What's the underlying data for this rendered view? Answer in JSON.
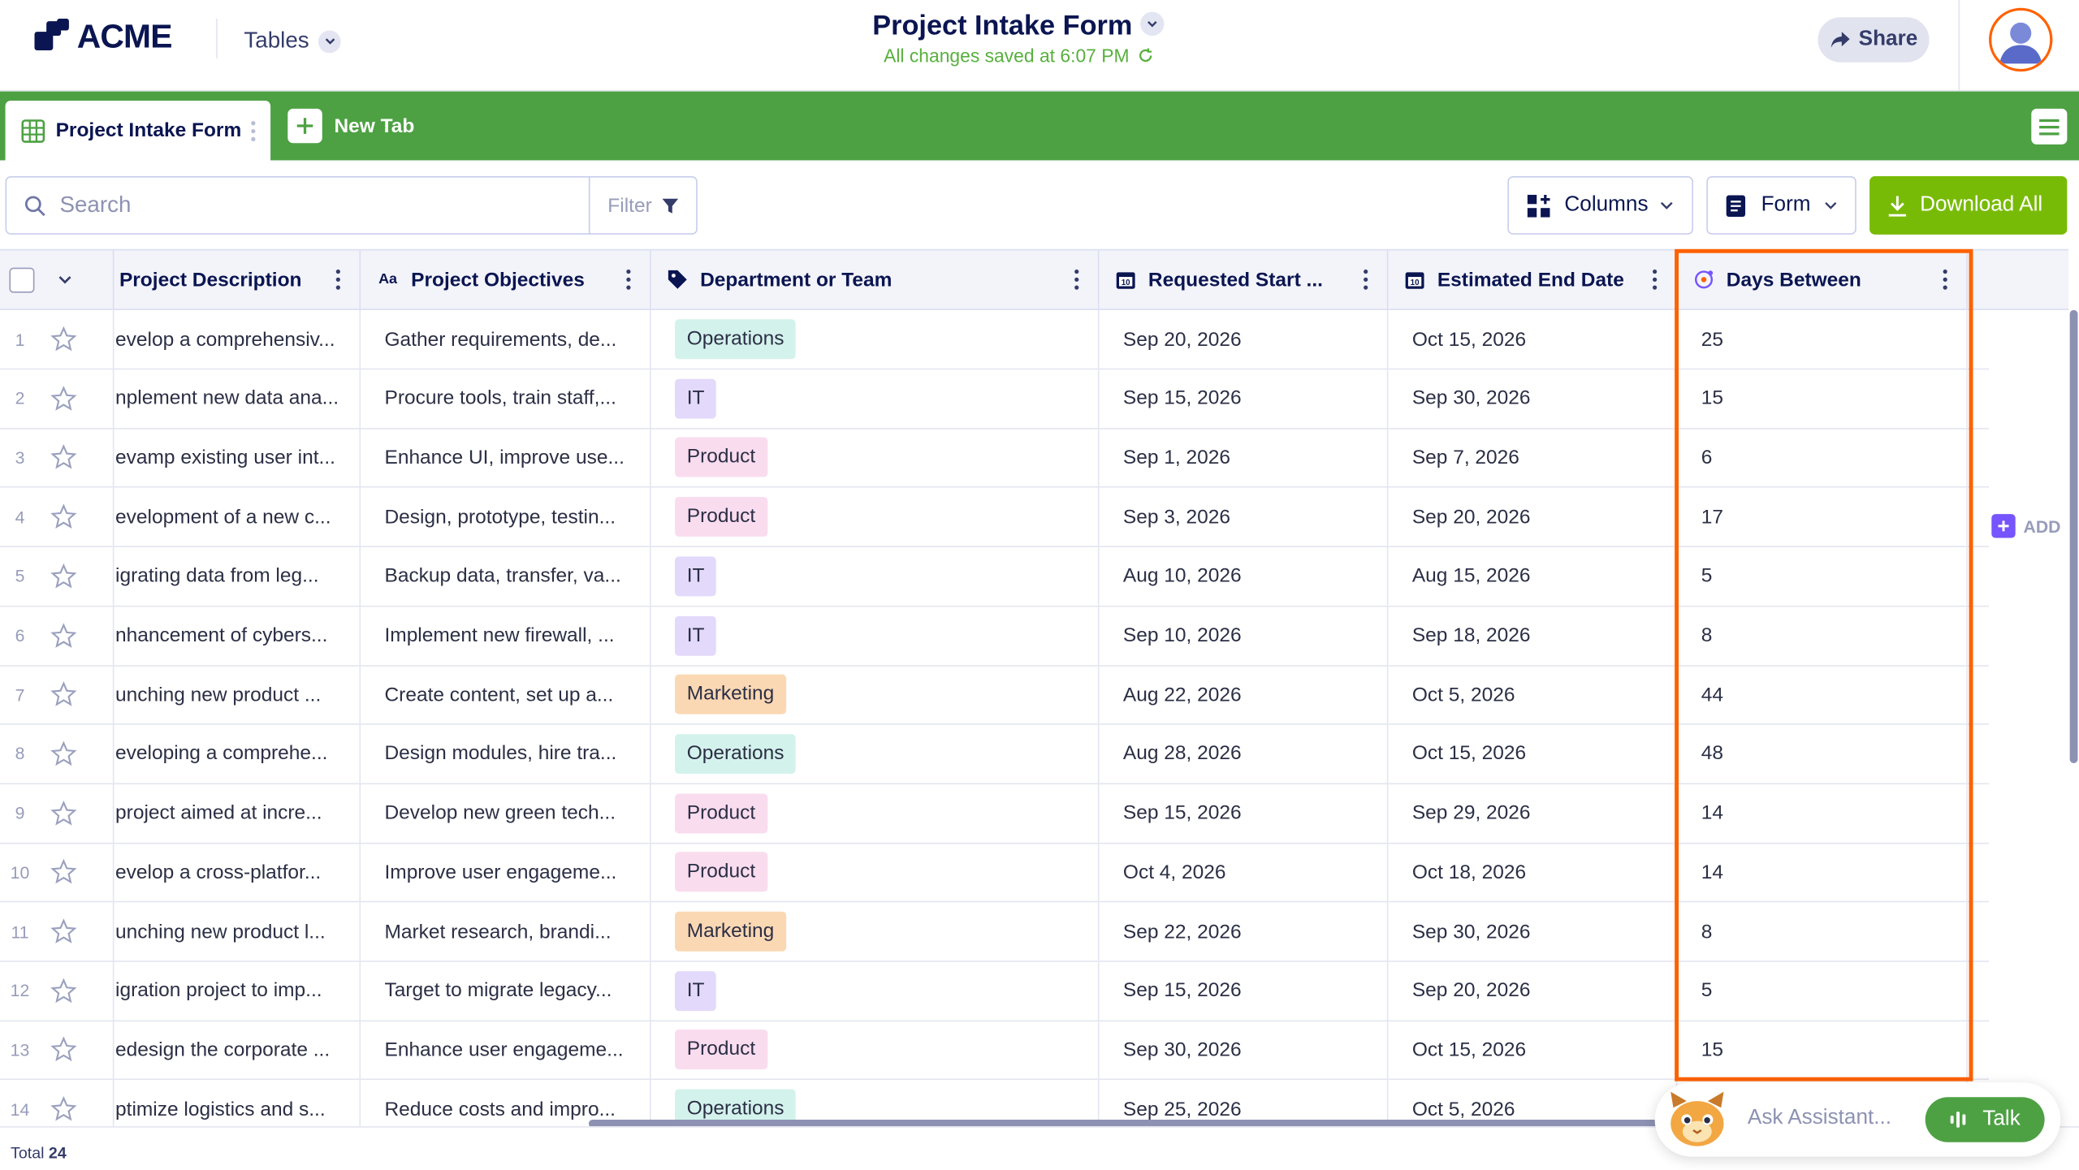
{
  "header": {
    "logo_text": "ACME",
    "tables_label": "Tables",
    "title": "Project Intake Form",
    "saved_status": "All changes saved at 6:07 PM",
    "share_label": "Share"
  },
  "tabs": {
    "active_label": "Project Intake Form",
    "new_tab_label": "New Tab"
  },
  "toolbar": {
    "search_placeholder": "Search",
    "filter_label": "Filter",
    "columns_label": "Columns",
    "form_label": "Form",
    "download_label": "Download All"
  },
  "columns": [
    {
      "label": "Project Description"
    },
    {
      "label": "Project Objectives"
    },
    {
      "label": "Department or Team"
    },
    {
      "label": "Requested Start ..."
    },
    {
      "label": "Estimated End Date"
    },
    {
      "label": "Days Between"
    }
  ],
  "add_column_label": "ADD",
  "rows": [
    {
      "n": "1",
      "desc": "evelop a comprehensiv...",
      "obj": "Gather requirements, de...",
      "dept": "Operations",
      "start": "Sep 20, 2026",
      "end": "Oct 15, 2026",
      "days": "25"
    },
    {
      "n": "2",
      "desc": "nplement new data ana...",
      "obj": "Procure tools, train staff,...",
      "dept": "IT",
      "start": "Sep 15, 2026",
      "end": "Sep 30, 2026",
      "days": "15"
    },
    {
      "n": "3",
      "desc": "evamp existing user int...",
      "obj": "Enhance UI, improve use...",
      "dept": "Product",
      "start": "Sep 1, 2026",
      "end": "Sep 7, 2026",
      "days": "6"
    },
    {
      "n": "4",
      "desc": "evelopment of a new c...",
      "obj": "Design, prototype, testin...",
      "dept": "Product",
      "start": "Sep 3, 2026",
      "end": "Sep 20, 2026",
      "days": "17"
    },
    {
      "n": "5",
      "desc": "igrating data from leg...",
      "obj": "Backup data, transfer, va...",
      "dept": "IT",
      "start": "Aug 10, 2026",
      "end": "Aug 15, 2026",
      "days": "5"
    },
    {
      "n": "6",
      "desc": "nhancement of cybers...",
      "obj": "Implement new firewall, ...",
      "dept": "IT",
      "start": "Sep 10, 2026",
      "end": "Sep 18, 2026",
      "days": "8"
    },
    {
      "n": "7",
      "desc": "unching new product ...",
      "obj": "Create content, set up a...",
      "dept": "Marketing",
      "start": "Aug 22, 2026",
      "end": "Oct 5, 2026",
      "days": "44"
    },
    {
      "n": "8",
      "desc": "eveloping a comprehe...",
      "obj": "Design modules, hire tra...",
      "dept": "Operations",
      "start": "Aug 28, 2026",
      "end": "Oct 15, 2026",
      "days": "48"
    },
    {
      "n": "9",
      "desc": "project aimed at incre...",
      "obj": "Develop new green tech...",
      "dept": "Product",
      "start": "Sep 15, 2026",
      "end": "Sep 29, 2026",
      "days": "14"
    },
    {
      "n": "10",
      "desc": "evelop a cross-platfor...",
      "obj": "Improve user engageme...",
      "dept": "Product",
      "start": "Oct 4, 2026",
      "end": "Oct 18, 2026",
      "days": "14"
    },
    {
      "n": "11",
      "desc": "unching new product l...",
      "obj": "Market research, brandi...",
      "dept": "Marketing",
      "start": "Sep 22, 2026",
      "end": "Sep 30, 2026",
      "days": "8"
    },
    {
      "n": "12",
      "desc": "igration project to imp...",
      "obj": "Target to migrate legacy...",
      "dept": "IT",
      "start": "Sep 15, 2026",
      "end": "Sep 20, 2026",
      "days": "5"
    },
    {
      "n": "13",
      "desc": "edesign the corporate ...",
      "obj": "Enhance user engageme...",
      "dept": "Product",
      "start": "Sep 30, 2026",
      "end": "Oct 15, 2026",
      "days": "15"
    },
    {
      "n": "14",
      "desc": "ptimize logistics and s...",
      "obj": "Reduce costs and impro...",
      "dept": "Operations",
      "start": "Sep 25, 2026",
      "end": "Oct 5, 2026",
      "days": ""
    }
  ],
  "footer": {
    "total_label": "Total",
    "total_value": "24"
  },
  "assistant": {
    "placeholder": "Ask Assistant...",
    "talk_label": "Talk"
  },
  "colors": {
    "brand_green": "#4da143",
    "accent_orange": "#ff6100",
    "navy": "#0a1551",
    "download_green": "#78bb07"
  }
}
